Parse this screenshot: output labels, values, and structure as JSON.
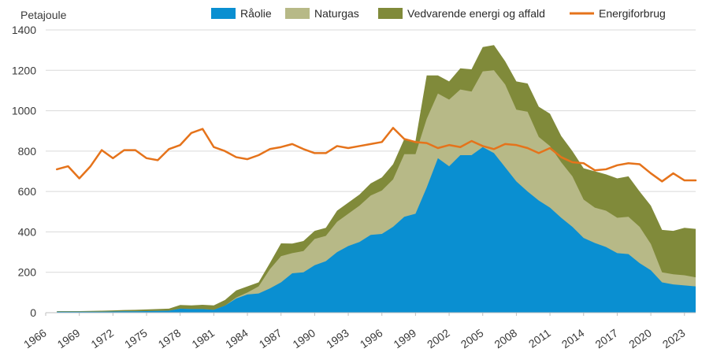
{
  "chart_data": {
    "type": "area",
    "ylabel": "Petajoule",
    "ylim": [
      0,
      1400
    ],
    "yticks": [
      0,
      200,
      400,
      600,
      800,
      1000,
      1200,
      1400
    ],
    "xlim": [
      1966,
      2024
    ],
    "xticks": [
      "1966",
      "1969",
      "1972",
      "1975",
      "1978",
      "1981",
      "1984",
      "1987",
      "1990",
      "1993",
      "1996",
      "1999",
      "2002",
      "2005",
      "2008",
      "2011",
      "2014",
      "2017",
      "2020",
      "2023"
    ],
    "grid": "horizontal",
    "legend_position": "top",
    "x": [
      1967,
      1968,
      1969,
      1970,
      1971,
      1972,
      1973,
      1974,
      1975,
      1976,
      1977,
      1978,
      1979,
      1980,
      1981,
      1982,
      1983,
      1984,
      1985,
      1986,
      1987,
      1988,
      1989,
      1990,
      1991,
      1992,
      1993,
      1994,
      1995,
      1996,
      1997,
      1998,
      1999,
      2000,
      2001,
      2002,
      2003,
      2004,
      2005,
      2006,
      2007,
      2008,
      2009,
      2010,
      2011,
      2012,
      2013,
      2014,
      2015,
      2016,
      2017,
      2018,
      2019,
      2020,
      2021,
      2022,
      2023,
      2024
    ],
    "series": [
      {
        "name": "Råolie",
        "kind": "area",
        "color": "#0a8fd1",
        "values": [
          5,
          5,
          5,
          5,
          5,
          6,
          7,
          7,
          8,
          9,
          10,
          20,
          18,
          18,
          14,
          35,
          70,
          90,
          95,
          120,
          150,
          195,
          200,
          235,
          255,
          300,
          330,
          350,
          385,
          390,
          425,
          475,
          490,
          620,
          765,
          725,
          780,
          780,
          820,
          790,
          720,
          650,
          600,
          555,
          520,
          470,
          425,
          370,
          345,
          325,
          295,
          290,
          245,
          210,
          150,
          140,
          135,
          130
        ],
        "layer_top": [
          5,
          5,
          5,
          5,
          5,
          6,
          7,
          7,
          8,
          9,
          10,
          20,
          18,
          18,
          14,
          35,
          70,
          90,
          95,
          120,
          150,
          195,
          200,
          235,
          255,
          300,
          330,
          350,
          385,
          390,
          425,
          475,
          490,
          620,
          765,
          725,
          780,
          780,
          820,
          790,
          720,
          650,
          600,
          555,
          520,
          470,
          425,
          370,
          345,
          325,
          295,
          290,
          245,
          210,
          150,
          140,
          135,
          130
        ]
      },
      {
        "name": "Naturgas",
        "kind": "area",
        "color": "#b7b987",
        "values": [
          0,
          0,
          0,
          0,
          0,
          0,
          0,
          0,
          0,
          0,
          0,
          0,
          0,
          0,
          0,
          0,
          5,
          10,
          35,
          95,
          130,
          100,
          105,
          130,
          125,
          150,
          160,
          180,
          195,
          215,
          235,
          310,
          295,
          340,
          320,
          330,
          325,
          315,
          375,
          410,
          410,
          355,
          395,
          315,
          305,
          275,
          250,
          190,
          175,
          180,
          175,
          185,
          180,
          130,
          50,
          50,
          50,
          45
        ],
        "layer_top": [
          5,
          5,
          5,
          5,
          5,
          6,
          7,
          7,
          8,
          9,
          10,
          20,
          18,
          18,
          14,
          35,
          75,
          100,
          130,
          215,
          280,
          295,
          305,
          365,
          380,
          450,
          490,
          530,
          580,
          605,
          660,
          785,
          785,
          960,
          1085,
          1055,
          1105,
          1095,
          1195,
          1200,
          1130,
          1005,
          995,
          870,
          825,
          745,
          675,
          560,
          520,
          505,
          470,
          475,
          425,
          340,
          200,
          190,
          185,
          175
        ]
      },
      {
        "name": "Vedvarende energi og affald",
        "kind": "area",
        "color": "#808a3a",
        "values": [
          3,
          3,
          3,
          4,
          5,
          5,
          6,
          7,
          8,
          9,
          10,
          18,
          18,
          21,
          22,
          28,
          35,
          30,
          20,
          30,
          63,
          47,
          50,
          40,
          40,
          55,
          55,
          55,
          60,
          65,
          75,
          75,
          65,
          215,
          90,
          90,
          105,
          110,
          120,
          125,
          115,
          140,
          140,
          150,
          160,
          130,
          125,
          155,
          180,
          180,
          195,
          200,
          175,
          190,
          210,
          215,
          235,
          240
        ],
        "layer_top": [
          8,
          8,
          8,
          9,
          10,
          11,
          13,
          14,
          16,
          18,
          20,
          38,
          36,
          39,
          36,
          63,
          110,
          130,
          150,
          245,
          343,
          342,
          355,
          405,
          420,
          505,
          545,
          585,
          640,
          670,
          735,
          860,
          850,
          1175,
          1175,
          1145,
          1210,
          1205,
          1315,
          1325,
          1245,
          1145,
          1135,
          1020,
          985,
          875,
          800,
          715,
          700,
          685,
          665,
          675,
          600,
          530,
          410,
          405,
          420,
          415
        ]
      },
      {
        "name": "Energiforbrug",
        "kind": "line",
        "color": "#e5731b",
        "values": [
          710,
          725,
          665,
          725,
          805,
          765,
          805,
          805,
          765,
          755,
          810,
          830,
          890,
          910,
          820,
          800,
          770,
          760,
          780,
          810,
          820,
          835,
          810,
          790,
          790,
          825,
          815,
          825,
          835,
          845,
          915,
          860,
          845,
          840,
          815,
          830,
          820,
          850,
          825,
          810,
          835,
          830,
          815,
          790,
          815,
          770,
          745,
          740,
          705,
          710,
          730,
          740,
          735,
          690,
          650,
          690,
          655,
          655
        ]
      }
    ]
  }
}
